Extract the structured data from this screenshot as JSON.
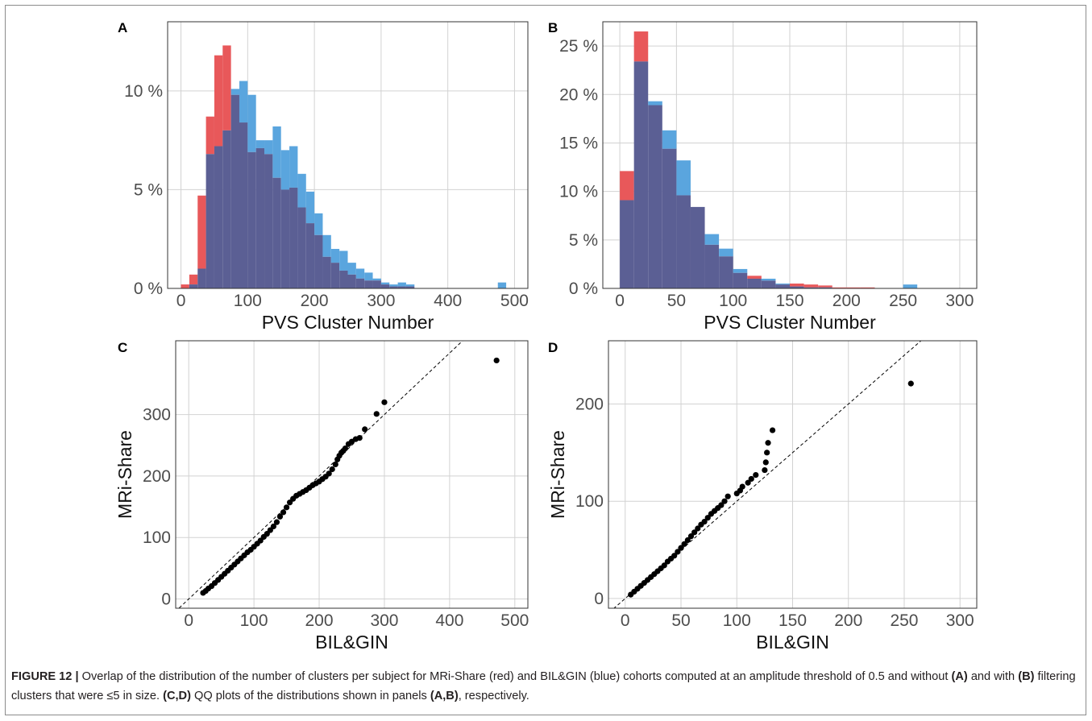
{
  "colors": {
    "mri_share": "#e8585a",
    "bil_gin": "#5aa5de",
    "overlap": "#5b5f94",
    "points": "#000000"
  },
  "chart_data": [
    {
      "panel": "A",
      "type": "bar",
      "xlabel": "PVS Cluster Number",
      "ylabel": "",
      "xlim": [
        -20,
        520
      ],
      "ylim": [
        0,
        13.5
      ],
      "x_ticks": [
        0,
        100,
        200,
        300,
        400,
        500
      ],
      "y_ticks": [
        0,
        5,
        10
      ],
      "y_tick_labels": [
        "0 %",
        "5 %",
        "10 %"
      ],
      "grid": true,
      "bin_width": 12.5,
      "bins_start": 0,
      "series": [
        {
          "values": [
            0.2,
            0.7,
            4.7,
            8.7,
            11.8,
            12.3,
            9.8,
            8.4,
            6.9,
            7.1,
            6.8,
            5.6,
            5.0,
            5.1,
            4.1,
            3.3,
            2.7,
            1.6,
            1.3,
            0.9,
            0.7,
            0.5,
            0.4,
            0.4,
            0.2,
            0.1,
            0.1,
            0.1,
            0,
            0,
            0,
            0,
            0,
            0,
            0,
            0,
            0,
            0,
            0,
            0
          ]
        },
        {
          "values": [
            0,
            0.2,
            1.0,
            6.8,
            7.2,
            8.0,
            10.1,
            10.5,
            9.8,
            7.5,
            7.5,
            8.2,
            7.0,
            7.2,
            5.8,
            4.9,
            3.8,
            2.7,
            2.0,
            1.9,
            1.3,
            1.0,
            0.8,
            0.5,
            0.3,
            0.2,
            0.3,
            0.2,
            0,
            0,
            0,
            0,
            0,
            0,
            0,
            0,
            0,
            0,
            0.3,
            0
          ]
        }
      ]
    },
    {
      "panel": "B",
      "type": "bar",
      "xlabel": "PVS Cluster Number",
      "ylabel": "",
      "xlim": [
        -15,
        315
      ],
      "ylim": [
        0,
        27.5
      ],
      "x_ticks": [
        0,
        50,
        100,
        150,
        200,
        250,
        300
      ],
      "y_ticks": [
        0,
        5,
        10,
        15,
        20,
        25
      ],
      "y_tick_labels": [
        "0 %",
        "5 %",
        "10 %",
        "15 %",
        "20 %",
        "25 %"
      ],
      "grid": true,
      "bin_width": 12.5,
      "bins_start": 0,
      "series": [
        {
          "values": [
            12.1,
            26.5,
            18.9,
            14.4,
            9.6,
            8.4,
            4.5,
            3.3,
            1.6,
            1.3,
            0.8,
            0.4,
            0.5,
            0.4,
            0.3,
            0.1,
            0.1,
            0.1,
            0,
            0,
            0,
            0,
            0,
            0
          ]
        },
        {
          "values": [
            9.1,
            23.4,
            19.3,
            16.3,
            13.2,
            8.4,
            5.6,
            4.1,
            2.0,
            1.0,
            1.0,
            0.5,
            0.2,
            0.1,
            0.1,
            0,
            0,
            0,
            0,
            0,
            0.4,
            0,
            0,
            0
          ]
        }
      ]
    },
    {
      "panel": "C",
      "type": "scatter",
      "xlabel": "BIL&GIN",
      "ylabel": "MRi-Share",
      "xlim": [
        -20,
        520
      ],
      "ylim": [
        -15,
        420
      ],
      "x_ticks": [
        0,
        100,
        200,
        300,
        400,
        500
      ],
      "y_ticks": [
        0,
        100,
        200,
        300
      ],
      "grid": true,
      "reference_line": "y=x",
      "x": [
        22,
        26,
        30,
        35,
        40,
        45,
        50,
        55,
        60,
        65,
        70,
        75,
        80,
        85,
        90,
        95,
        100,
        105,
        110,
        115,
        120,
        125,
        130,
        135,
        140,
        145,
        150,
        155,
        160,
        165,
        170,
        175,
        180,
        185,
        190,
        195,
        200,
        205,
        210,
        215,
        220,
        225,
        228,
        231,
        234,
        237,
        240,
        245,
        250,
        256,
        262,
        270,
        288,
        300,
        472
      ],
      "y": [
        10,
        13,
        17,
        21,
        26,
        31,
        36,
        41,
        46,
        51,
        56,
        61,
        66,
        71,
        76,
        80,
        85,
        90,
        95,
        101,
        106,
        112,
        118,
        125,
        134,
        141,
        149,
        157,
        163,
        168,
        171,
        174,
        177,
        181,
        185,
        188,
        191,
        195,
        199,
        204,
        211,
        219,
        227,
        233,
        238,
        241,
        245,
        252,
        256,
        260,
        262,
        276,
        301,
        320,
        388
      ]
    },
    {
      "panel": "D",
      "type": "scatter",
      "xlabel": "BIL&GIN",
      "ylabel": "MRi-Share",
      "xlim": [
        -15,
        315
      ],
      "ylim": [
        -10,
        265
      ],
      "x_ticks": [
        0,
        50,
        100,
        150,
        200,
        250,
        300
      ],
      "y_ticks": [
        0,
        100,
        200
      ],
      "grid": true,
      "reference_line": "y=x",
      "x": [
        5,
        8,
        11,
        14,
        17,
        20,
        23,
        26,
        29,
        32,
        35,
        38,
        41,
        44,
        47,
        50,
        53,
        56,
        59,
        62,
        65,
        68,
        71,
        74,
        77,
        80,
        83,
        86,
        89,
        92,
        100,
        103,
        105,
        110,
        113,
        117,
        125,
        126,
        127,
        128,
        132,
        256
      ],
      "y": [
        4,
        7,
        10,
        13,
        16,
        19,
        22,
        25,
        28,
        31,
        34,
        38,
        41,
        44,
        48,
        52,
        56,
        60,
        64,
        68,
        72,
        76,
        79,
        83,
        87,
        90,
        93,
        96,
        100,
        105,
        108,
        111,
        115,
        119,
        123,
        127,
        132,
        140,
        150,
        160,
        173,
        221
      ]
    }
  ],
  "panel_letters": {
    "a": "A",
    "b": "B",
    "c": "C",
    "d": "D"
  },
  "caption": {
    "label": "FIGURE 12 |",
    "seg1": " Overlap of the distribution of the number of clusters per subject for MRi-Share (red) and BIL&GIN (blue) cohorts computed at an amplitude threshold of 0.5 and without ",
    "b1": "(A)",
    "seg2": " and with ",
    "b2": "(B)",
    "seg3": " filtering clusters that were ≤5 in size. ",
    "b3": "(C,D)",
    "seg4": " QQ plots of the distributions shown in panels ",
    "b4": "(A,B)",
    "seg5": ", respectively."
  }
}
